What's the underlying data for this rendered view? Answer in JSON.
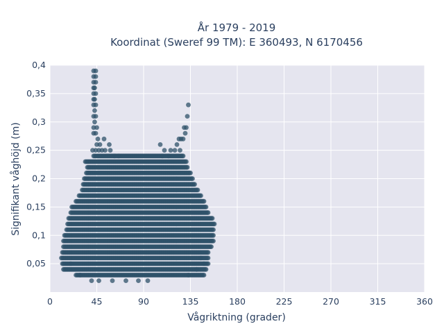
{
  "chart_data": {
    "type": "scatter",
    "title": "År 1979 - 2019",
    "subtitle": "Koordinat (Sweref 99 TM): E 360493, N 6170456",
    "xlabel": "Vågriktning (grader)",
    "ylabel": "Signifikant våghöjd (m)",
    "xlim": [
      0,
      360
    ],
    "ylim": [
      0,
      0.4
    ],
    "x_ticks": [
      0,
      45,
      90,
      135,
      180,
      225,
      270,
      315,
      360
    ],
    "x_tick_labels": [
      "0",
      "45",
      "90",
      "135",
      "180",
      "225",
      "270",
      "315",
      "360"
    ],
    "y_ticks": [
      0.05,
      0.1,
      0.15,
      0.2,
      0.25,
      0.3,
      0.35,
      0.4
    ],
    "y_tick_labels": [
      "0,05",
      "0,1",
      "0,15",
      "0,2",
      "0,25",
      "0,3",
      "0,35",
      "0,4"
    ],
    "grid": true,
    "marker_color": "#2f5169",
    "plot_background": "#e5e5ef",
    "series": [
      {
        "envelope": [
          {
            "y": 0.02,
            "x_min": 35,
            "x_max": 105
          },
          {
            "y": 0.03,
            "x_min": 25,
            "x_max": 148
          },
          {
            "y": 0.04,
            "x_min": 13,
            "x_max": 150
          },
          {
            "y": 0.05,
            "x_min": 12,
            "x_max": 152
          },
          {
            "y": 0.06,
            "x_min": 11,
            "x_max": 152
          },
          {
            "y": 0.07,
            "x_min": 12,
            "x_max": 152
          },
          {
            "y": 0.08,
            "x_min": 13,
            "x_max": 155
          },
          {
            "y": 0.09,
            "x_min": 13,
            "x_max": 157
          },
          {
            "y": 0.1,
            "x_min": 14,
            "x_max": 157
          },
          {
            "y": 0.11,
            "x_min": 16,
            "x_max": 157
          },
          {
            "y": 0.12,
            "x_min": 17,
            "x_max": 158
          },
          {
            "y": 0.13,
            "x_min": 18,
            "x_max": 156
          },
          {
            "y": 0.14,
            "x_min": 20,
            "x_max": 152
          },
          {
            "y": 0.15,
            "x_min": 21,
            "x_max": 150
          },
          {
            "y": 0.16,
            "x_min": 25,
            "x_max": 148
          },
          {
            "y": 0.17,
            "x_min": 28,
            "x_max": 145
          },
          {
            "y": 0.18,
            "x_min": 31,
            "x_max": 142
          },
          {
            "y": 0.19,
            "x_min": 32,
            "x_max": 139
          },
          {
            "y": 0.2,
            "x_min": 33,
            "x_max": 137
          },
          {
            "y": 0.21,
            "x_min": 35,
            "x_max": 135
          },
          {
            "y": 0.22,
            "x_min": 36,
            "x_max": 132
          },
          {
            "y": 0.23,
            "x_min": 34,
            "x_max": 131
          },
          {
            "y": 0.24,
            "x_min": 42,
            "x_max": 128
          }
        ],
        "extra_points": [
          {
            "x": 42,
            "y": 0.39
          },
          {
            "x": 44,
            "y": 0.39
          },
          {
            "x": 42,
            "y": 0.38
          },
          {
            "x": 44,
            "y": 0.38
          },
          {
            "x": 42,
            "y": 0.37
          },
          {
            "x": 44,
            "y": 0.37
          },
          {
            "x": 42,
            "y": 0.36
          },
          {
            "x": 43,
            "y": 0.36
          },
          {
            "x": 42,
            "y": 0.35
          },
          {
            "x": 44,
            "y": 0.35
          },
          {
            "x": 42,
            "y": 0.34
          },
          {
            "x": 43,
            "y": 0.34
          },
          {
            "x": 42,
            "y": 0.33
          },
          {
            "x": 44,
            "y": 0.33
          },
          {
            "x": 43,
            "y": 0.32
          },
          {
            "x": 42,
            "y": 0.31
          },
          {
            "x": 44,
            "y": 0.31
          },
          {
            "x": 43,
            "y": 0.3
          },
          {
            "x": 42,
            "y": 0.29
          },
          {
            "x": 45,
            "y": 0.29
          },
          {
            "x": 42,
            "y": 0.28
          },
          {
            "x": 44,
            "y": 0.28
          },
          {
            "x": 46,
            "y": 0.27
          },
          {
            "x": 52,
            "y": 0.27
          },
          {
            "x": 45,
            "y": 0.26
          },
          {
            "x": 48,
            "y": 0.26
          },
          {
            "x": 57,
            "y": 0.26
          },
          {
            "x": 41,
            "y": 0.25
          },
          {
            "x": 44,
            "y": 0.25
          },
          {
            "x": 47,
            "y": 0.25
          },
          {
            "x": 50,
            "y": 0.25
          },
          {
            "x": 53,
            "y": 0.25
          },
          {
            "x": 58,
            "y": 0.25
          },
          {
            "x": 62,
            "y": 0.24
          },
          {
            "x": 66,
            "y": 0.24
          },
          {
            "x": 133,
            "y": 0.33
          },
          {
            "x": 132,
            "y": 0.31
          },
          {
            "x": 131,
            "y": 0.29
          },
          {
            "x": 129,
            "y": 0.29
          },
          {
            "x": 130,
            "y": 0.28
          },
          {
            "x": 126,
            "y": 0.27
          },
          {
            "x": 128,
            "y": 0.27
          },
          {
            "x": 124,
            "y": 0.27
          },
          {
            "x": 106,
            "y": 0.26
          },
          {
            "x": 122,
            "y": 0.26
          },
          {
            "x": 110,
            "y": 0.25
          },
          {
            "x": 116,
            "y": 0.25
          },
          {
            "x": 120,
            "y": 0.25
          },
          {
            "x": 125,
            "y": 0.25
          },
          {
            "x": 108,
            "y": 0.24
          },
          {
            "x": 114,
            "y": 0.24
          },
          {
            "x": 40,
            "y": 0.02
          },
          {
            "x": 47,
            "y": 0.02
          },
          {
            "x": 60,
            "y": 0.02
          },
          {
            "x": 73,
            "y": 0.02
          },
          {
            "x": 85,
            "y": 0.02
          },
          {
            "x": 94,
            "y": 0.02
          },
          {
            "x": 20,
            "y": 0.05
          },
          {
            "x": 29,
            "y": 0.03
          },
          {
            "x": 133,
            "y": 0.03
          },
          {
            "x": 141,
            "y": 0.04
          },
          {
            "x": 145,
            "y": 0.06
          },
          {
            "x": 148,
            "y": 0.05
          }
        ]
      }
    ]
  }
}
